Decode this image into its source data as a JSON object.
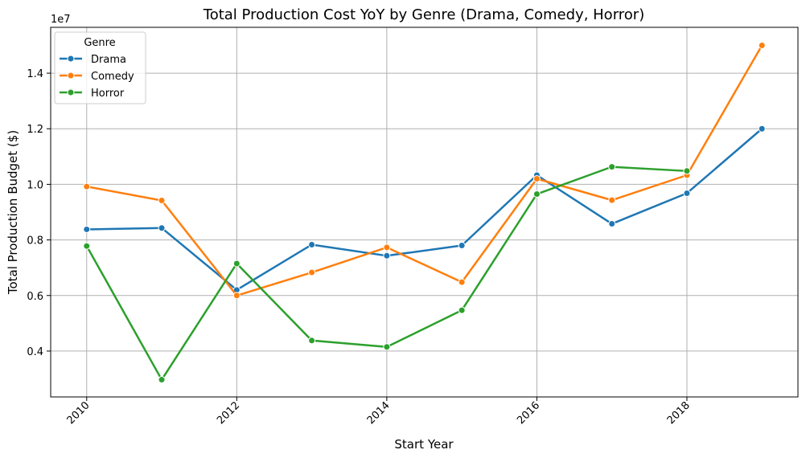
{
  "chart_data": {
    "type": "line",
    "title": "Total Production Cost YoY by Genre (Drama, Comedy, Horror)",
    "xlabel": "Start Year",
    "ylabel": "Total Production Budget ($)",
    "y_offset_label": "1e7",
    "xlim": [
      2009.52,
      2019.48
    ],
    "ylim": [
      2350000,
      15650000
    ],
    "x_ticks": [
      2010,
      2012,
      2014,
      2016,
      2018
    ],
    "x_tick_labels": [
      "2010",
      "2012",
      "2014",
      "2016",
      "2018"
    ],
    "y_ticks": [
      4000000,
      6000000,
      8000000,
      10000000,
      12000000,
      14000000
    ],
    "y_tick_labels": [
      "0.4",
      "0.6",
      "0.8",
      "1.0",
      "1.2",
      "1.4"
    ],
    "grid": true,
    "legend_title": "Genre",
    "legend_position": "top-left",
    "x": [
      2010,
      2011,
      2012,
      2013,
      2014,
      2015,
      2016,
      2017,
      2018,
      2019
    ],
    "series": [
      {
        "name": "Drama",
        "color": "#1f77b4",
        "values": [
          8380000,
          8430000,
          6200000,
          7830000,
          7430000,
          7800000,
          10330000,
          8580000,
          9680000,
          12000000
        ]
      },
      {
        "name": "Comedy",
        "color": "#ff7f0e",
        "values": [
          9920000,
          9420000,
          6000000,
          6830000,
          7730000,
          6480000,
          10200000,
          9430000,
          10330000,
          15000000
        ]
      },
      {
        "name": "Horror",
        "color": "#2ca02c",
        "values": [
          7780000,
          2970000,
          7150000,
          4380000,
          4150000,
          5470000,
          9650000,
          10630000,
          10480000,
          null
        ]
      }
    ]
  }
}
